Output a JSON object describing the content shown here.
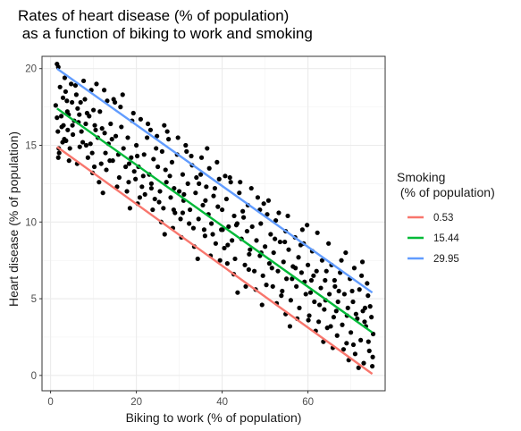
{
  "chart_data": {
    "type": "scatter",
    "title_line1": "Rates of heart disease (% of population)",
    "title_line2": " as a function of biking to work and smoking",
    "xlabel": "Biking to work (% of population)",
    "ylabel": "Heart disease (% of population)",
    "xlim": [
      -2,
      78
    ],
    "ylim": [
      -1,
      20.8
    ],
    "x_ticks": [
      0,
      20,
      40,
      60
    ],
    "y_ticks": [
      0,
      5,
      10,
      15,
      20
    ],
    "grid": "on",
    "legend_placement": "right",
    "legend_title_line1": "Smoking",
    "legend_title_line2": " (% of population)",
    "series": [
      {
        "name": "0.53",
        "color": "#F8766D",
        "x": [
          1.5,
          75
        ],
        "y": [
          14.9,
          0.1
        ]
      },
      {
        "name": "15.44",
        "color": "#00BA38",
        "x": [
          1.5,
          75
        ],
        "y": [
          17.4,
          2.8
        ]
      },
      {
        "name": "29.95",
        "color": "#619CFF",
        "x": [
          1.5,
          75
        ],
        "y": [
          20.0,
          5.4
        ]
      }
    ],
    "points": [
      [
        1.5,
        20.3
      ],
      [
        1.8,
        20.1
      ],
      [
        1.2,
        17.6
      ],
      [
        1.5,
        16.8
      ],
      [
        2.5,
        16.9
      ],
      [
        1.7,
        15.9
      ],
      [
        2.0,
        14.5
      ],
      [
        3.0,
        16.3
      ],
      [
        1.8,
        14.2
      ],
      [
        2.8,
        15.2
      ],
      [
        3.5,
        18.5
      ],
      [
        3.8,
        17.9
      ],
      [
        4.2,
        17.0
      ],
      [
        4.0,
        16.0
      ],
      [
        3.2,
        15.4
      ],
      [
        4.5,
        14.8
      ],
      [
        5.0,
        17.8
      ],
      [
        5.5,
        16.6
      ],
      [
        5.2,
        15.7
      ],
      [
        6.0,
        18.3
      ],
      [
        6.3,
        17.4
      ],
      [
        6.5,
        16.5
      ],
      [
        7.0,
        17.8
      ],
      [
        7.2,
        15.9
      ],
      [
        6.8,
        14.9
      ],
      [
        7.5,
        15.2
      ],
      [
        8.0,
        18.0
      ],
      [
        8.5,
        17.1
      ],
      [
        8.2,
        16.4
      ],
      [
        9.0,
        16.9
      ],
      [
        9.3,
        15.1
      ],
      [
        9.7,
        14.5
      ],
      [
        10.0,
        17.3
      ],
      [
        10.5,
        16.0
      ],
      [
        10.2,
        13.6
      ],
      [
        11.0,
        15.5
      ],
      [
        11.5,
        17.2
      ],
      [
        12.0,
        16.1
      ],
      [
        12.5,
        18.6
      ],
      [
        12.8,
        14.5
      ],
      [
        13.0,
        13.4
      ],
      [
        13.5,
        15.1
      ],
      [
        14.0,
        16.4
      ],
      [
        14.5,
        14.0
      ],
      [
        15.0,
        17.8
      ],
      [
        15.2,
        15.6
      ],
      [
        15.8,
        14.4
      ],
      [
        16.0,
        12.9
      ],
      [
        16.5,
        16.2
      ],
      [
        17.0,
        14.8
      ],
      [
        17.5,
        13.6
      ],
      [
        18.0,
        15.5
      ],
      [
        18.2,
        12.6
      ],
      [
        18.8,
        14.2
      ],
      [
        19.0,
        16.6
      ],
      [
        19.5,
        13.3
      ],
      [
        20.0,
        15.0
      ],
      [
        20.5,
        13.6
      ],
      [
        21.0,
        16.7
      ],
      [
        21.3,
        12.3
      ],
      [
        21.8,
        14.4
      ],
      [
        22.0,
        11.8
      ],
      [
        22.5,
        15.5
      ],
      [
        23.0,
        13.1
      ],
      [
        23.5,
        12.5
      ],
      [
        24.0,
        14.1
      ],
      [
        24.3,
        11.5
      ],
      [
        24.8,
        15.6
      ],
      [
        25.0,
        13.6
      ],
      [
        25.5,
        12.0
      ],
      [
        26.0,
        14.6
      ],
      [
        26.3,
        10.9
      ],
      [
        26.8,
        13.4
      ],
      [
        27.0,
        12.6
      ],
      [
        27.5,
        15.4
      ],
      [
        28.0,
        11.6
      ],
      [
        28.3,
        13.9
      ],
      [
        28.8,
        12.2
      ],
      [
        29.0,
        10.6
      ],
      [
        29.5,
        14.4
      ],
      [
        30.0,
        12.0
      ],
      [
        30.3,
        10.2
      ],
      [
        30.8,
        13.1
      ],
      [
        31.0,
        11.4
      ],
      [
        31.5,
        15.0
      ],
      [
        32.0,
        12.5
      ],
      [
        32.5,
        10.8
      ],
      [
        33.0,
        13.7
      ],
      [
        33.3,
        9.6
      ],
      [
        33.8,
        11.9
      ],
      [
        34.0,
        12.9
      ],
      [
        34.5,
        10.2
      ],
      [
        35.0,
        13.1
      ],
      [
        35.5,
        11.1
      ],
      [
        36.0,
        9.1
      ],
      [
        36.3,
        12.3
      ],
      [
        36.8,
        10.5
      ],
      [
        37.0,
        13.5
      ],
      [
        37.5,
        9.9
      ],
      [
        38.0,
        11.7
      ],
      [
        38.5,
        8.6
      ],
      [
        39.0,
        11.0
      ],
      [
        39.3,
        12.8
      ],
      [
        39.8,
        9.5
      ],
      [
        40.0,
        10.8
      ],
      [
        40.5,
        8.3
      ],
      [
        41.0,
        11.5
      ],
      [
        41.5,
        9.7
      ],
      [
        42.0,
        12.6
      ],
      [
        42.3,
        8.8
      ],
      [
        42.8,
        10.4
      ],
      [
        43.0,
        7.6
      ],
      [
        43.5,
        9.9
      ],
      [
        44.0,
        11.9
      ],
      [
        44.5,
        8.9
      ],
      [
        45.0,
        10.3
      ],
      [
        45.3,
        7.2
      ],
      [
        45.8,
        9.4
      ],
      [
        46.0,
        11.1
      ],
      [
        46.5,
        8.2
      ],
      [
        47.0,
        9.7
      ],
      [
        47.5,
        6.8
      ],
      [
        48.0,
        8.8
      ],
      [
        48.3,
        11.6
      ],
      [
        48.8,
        7.8
      ],
      [
        49.0,
        9.9
      ],
      [
        49.5,
        6.5
      ],
      [
        50.0,
        8.4
      ],
      [
        50.5,
        10.5
      ],
      [
        51.0,
        7.3
      ],
      [
        51.3,
        9.2
      ],
      [
        51.8,
        5.8
      ],
      [
        52.0,
        8.0
      ],
      [
        52.5,
        10.1
      ],
      [
        53.0,
        6.8
      ],
      [
        53.5,
        8.7
      ],
      [
        54.0,
        5.5
      ],
      [
        54.3,
        7.4
      ],
      [
        54.8,
        9.4
      ],
      [
        55.0,
        6.3
      ],
      [
        55.5,
        8.2
      ],
      [
        56.0,
        4.9
      ],
      [
        56.5,
        7.1
      ],
      [
        57.0,
        9.0
      ],
      [
        57.3,
        5.8
      ],
      [
        57.8,
        7.7
      ],
      [
        58.0,
        4.4
      ],
      [
        58.5,
        6.7
      ],
      [
        59.0,
        8.6
      ],
      [
        59.5,
        5.3
      ],
      [
        60.0,
        7.2
      ],
      [
        60.3,
        3.9
      ],
      [
        60.8,
        6.2
      ],
      [
        61.0,
        8.1
      ],
      [
        61.5,
        4.8
      ],
      [
        62.0,
        6.8
      ],
      [
        62.5,
        3.5
      ],
      [
        63.0,
        5.7
      ],
      [
        63.3,
        7.5
      ],
      [
        63.8,
        4.3
      ],
      [
        64.0,
        6.2
      ],
      [
        64.5,
        3.1
      ],
      [
        65.0,
        5.3
      ],
      [
        65.5,
        7.2
      ],
      [
        66.0,
        3.8
      ],
      [
        66.3,
        5.8
      ],
      [
        66.8,
        2.6
      ],
      [
        67.0,
        4.8
      ],
      [
        67.5,
        6.7
      ],
      [
        68.0,
        3.3
      ],
      [
        68.5,
        5.3
      ],
      [
        69.0,
        2.1
      ],
      [
        69.3,
        4.4
      ],
      [
        69.8,
        6.3
      ],
      [
        70.0,
        2.8
      ],
      [
        70.5,
        4.8
      ],
      [
        71.0,
        1.4
      ],
      [
        71.5,
        3.7
      ],
      [
        72.0,
        5.6
      ],
      [
        72.3,
        2.3
      ],
      [
        72.8,
        4.2
      ],
      [
        73.0,
        0.8
      ],
      [
        73.5,
        3.2
      ],
      [
        74.0,
        5.2
      ],
      [
        74.3,
        1.6
      ],
      [
        74.8,
        3.8
      ],
      [
        75.0,
        0.6
      ],
      [
        75.2,
        2.7
      ],
      [
        71.8,
        0.5
      ],
      [
        74.5,
        4.5
      ],
      [
        5.8,
        18.9
      ],
      [
        8.7,
        14.2
      ],
      [
        11.8,
        13.8
      ],
      [
        20.8,
        11.6
      ],
      [
        27.2,
        15.9
      ],
      [
        35.2,
        14.2
      ],
      [
        44.2,
        12.6
      ],
      [
        53.2,
        10.6
      ],
      [
        62.2,
        9.3
      ],
      [
        70.8,
        7.0
      ],
      [
        73.8,
        6.0
      ],
      [
        67.8,
        7.5
      ],
      [
        58.7,
        9.5
      ],
      [
        49.7,
        11.2
      ],
      [
        40.7,
        13.0
      ],
      [
        31.7,
        14.6
      ],
      [
        22.7,
        16.4
      ],
      [
        14.7,
        18.0
      ],
      [
        10.7,
        19.0
      ],
      [
        7.7,
        19.2
      ],
      [
        3.3,
        19.4
      ],
      [
        2.2,
        18.8
      ],
      [
        4.8,
        19.0
      ],
      [
        9.5,
        18.6
      ],
      [
        13.2,
        17.9
      ],
      [
        16.3,
        17.5
      ],
      [
        19.3,
        17.1
      ],
      [
        23.3,
        16.0
      ],
      [
        26.5,
        16.3
      ],
      [
        29.7,
        15.5
      ],
      [
        32.8,
        14.3
      ],
      [
        36.5,
        14.8
      ],
      [
        38.8,
        13.9
      ],
      [
        41.8,
        12.9
      ],
      [
        46.8,
        12.2
      ],
      [
        50.8,
        11.4
      ],
      [
        55.3,
        10.4
      ],
      [
        59.8,
        9.8
      ],
      [
        64.8,
        8.6
      ],
      [
        68.8,
        8.0
      ],
      [
        72.7,
        7.4
      ],
      [
        45.5,
        5.8
      ],
      [
        39.5,
        7.5
      ],
      [
        33.5,
        8.4
      ],
      [
        28.5,
        9.6
      ],
      [
        23.8,
        10.8
      ],
      [
        17.8,
        12.0
      ],
      [
        11.3,
        12.6
      ],
      [
        6.2,
        13.8
      ],
      [
        57.5,
        3.7
      ],
      [
        61.8,
        2.9
      ],
      [
        65.8,
        1.8
      ],
      [
        69.5,
        1.0
      ],
      [
        52.7,
        4.7
      ],
      [
        47.8,
        5.6
      ],
      [
        42.7,
        6.6
      ],
      [
        37.3,
        7.8
      ],
      [
        30.5,
        9.0
      ],
      [
        25.8,
        10.0
      ],
      [
        20.3,
        11.2
      ],
      [
        15.5,
        12.3
      ],
      [
        9.8,
        13.2
      ],
      [
        4.3,
        14.0
      ],
      [
        3.6,
        15.3
      ],
      [
        24.6,
        14.8
      ],
      [
        34.6,
        12.5
      ],
      [
        44.8,
        10.7
      ],
      [
        54.6,
        8.7
      ],
      [
        64.3,
        6.8
      ],
      [
        70.3,
        5.5
      ],
      [
        66.6,
        4.2
      ],
      [
        60.6,
        5.4
      ],
      [
        56.3,
        6.3
      ],
      [
        51.6,
        7.0
      ],
      [
        46.3,
        7.9
      ],
      [
        41.3,
        8.5
      ],
      [
        35.8,
        9.5
      ],
      [
        30.8,
        10.6
      ],
      [
        25.3,
        11.3
      ],
      [
        19.8,
        12.8
      ],
      [
        13.8,
        14.0
      ],
      [
        8.3,
        15.0
      ],
      [
        2.6,
        16.2
      ],
      [
        12.2,
        11.9
      ],
      [
        18.5,
        10.9
      ],
      [
        26.6,
        9.2
      ],
      [
        34.3,
        7.6
      ],
      [
        43.6,
        5.4
      ],
      [
        49.3,
        4.6
      ],
      [
        55.8,
        3.2
      ],
      [
        63.6,
        2.2
      ],
      [
        68.3,
        1.7
      ],
      [
        74.1,
        2.2
      ],
      [
        72.5,
        6.5
      ],
      [
        71.2,
        4.0
      ],
      [
        67.2,
        5.5
      ],
      [
        62.7,
        4.6
      ],
      [
        59.2,
        6.1
      ],
      [
        54.8,
        4.0
      ],
      [
        50.3,
        5.9
      ],
      [
        46.2,
        6.9
      ],
      [
        41.2,
        7.3
      ],
      [
        37.8,
        9.2
      ],
      [
        32.3,
        9.9
      ],
      [
        28.7,
        10.8
      ],
      [
        23.5,
        12.2
      ],
      [
        18.3,
        13.8
      ],
      [
        14.3,
        15.4
      ],
      [
        10.3,
        16.3
      ],
      [
        6.7,
        17.0
      ],
      [
        3.9,
        17.2
      ],
      [
        2.9,
        18.1
      ],
      [
        38.3,
        12.2
      ],
      [
        48.8,
        10.8
      ],
      [
        58.3,
        8.5
      ],
      [
        66.2,
        6.2
      ],
      [
        73.3,
        4.4
      ],
      [
        16.8,
        18.3
      ],
      [
        20.2,
        14.3
      ],
      [
        27.8,
        13.0
      ],
      [
        36.1,
        11.4
      ],
      [
        43.3,
        9.8
      ],
      [
        52.3,
        8.9
      ],
      [
        61.3,
        6.5
      ],
      [
        69.1,
        3.9
      ],
      [
        75.1,
        1.2
      ],
      [
        64.1,
        4.9
      ],
      [
        57.1,
        7.0
      ],
      [
        49.1,
        8.0
      ],
      [
        40.1,
        9.5
      ],
      [
        31.1,
        11.8
      ],
      [
        21.6,
        13.0
      ],
      [
        12.6,
        15.8
      ],
      [
        5.1,
        16.3
      ],
      [
        1.9,
        14.8
      ],
      [
        73.2,
        3.5
      ],
      [
        70.6,
        2.0
      ],
      [
        65.3,
        3.2
      ],
      [
        60.1,
        3.6
      ],
      [
        53.8,
        5.2
      ]
    ]
  }
}
